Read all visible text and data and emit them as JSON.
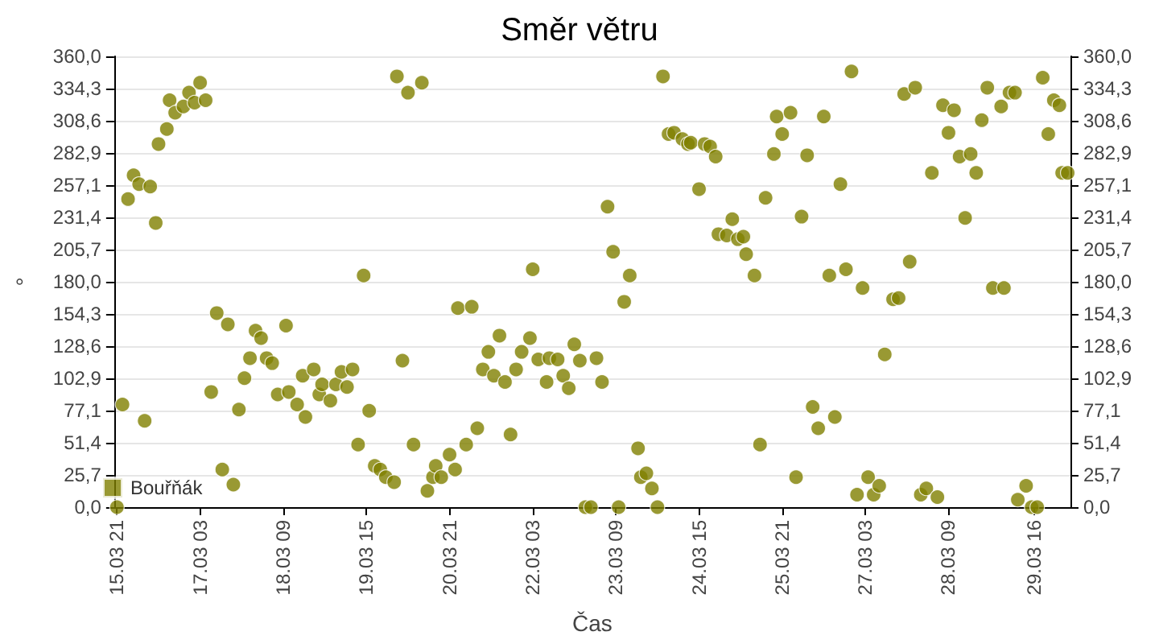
{
  "chart_data": {
    "type": "scatter",
    "title": "Směr větru",
    "xlabel": "Čas",
    "ylabel": "°",
    "xlim": [
      "--03-15T20:00",
      "--03-30T05:00"
    ],
    "xticks": [
      {
        "value": "--03-15T21:00",
        "label": "15.03 21"
      },
      {
        "value": "--03-17T03:00",
        "label": "17.03 03"
      },
      {
        "value": "--03-18T09:00",
        "label": "18.03 09"
      },
      {
        "value": "--03-19T15:00",
        "label": "19.03 15"
      },
      {
        "value": "--03-20T21:00",
        "label": "20.03 21"
      },
      {
        "value": "--03-22T03:00",
        "label": "22.03 03"
      },
      {
        "value": "--03-23T09:00",
        "label": "23.03 09"
      },
      {
        "value": "--03-24T15:00",
        "label": "24.03 15"
      },
      {
        "value": "--03-25T21:00",
        "label": "25.03 21"
      },
      {
        "value": "--03-27T03:00",
        "label": "27.03 03"
      },
      {
        "value": "--03-28T09:00",
        "label": "28.03 09"
      },
      {
        "value": "--03-29T16:00",
        "label": "29.03 16"
      }
    ],
    "ylim": [
      0,
      360
    ],
    "yticks": [
      {
        "value": 0,
        "label": "0,0"
      },
      {
        "value": 25.7,
        "label": "25,7"
      },
      {
        "value": 51.4,
        "label": "51,4"
      },
      {
        "value": 77.1,
        "label": "77,1"
      },
      {
        "value": 102.9,
        "label": "102,9"
      },
      {
        "value": 128.6,
        "label": "128,6"
      },
      {
        "value": 154.3,
        "label": "154,3"
      },
      {
        "value": 180,
        "label": "180,0"
      },
      {
        "value": 205.7,
        "label": "205,7"
      },
      {
        "value": 231.4,
        "label": "231,4"
      },
      {
        "value": 257.1,
        "label": "257,1"
      },
      {
        "value": 282.9,
        "label": "282,9"
      },
      {
        "value": 308.6,
        "label": "308,6"
      },
      {
        "value": 334.3,
        "label": "334,3"
      },
      {
        "value": 360,
        "label": "360,0"
      }
    ],
    "y2lim": [
      0,
      360
    ],
    "y2ticks": [
      {
        "value": 0,
        "label": "0,0"
      },
      {
        "value": 25.7,
        "label": "25,7"
      },
      {
        "value": 51.4,
        "label": "51,4"
      },
      {
        "value": 77.1,
        "label": "77,1"
      },
      {
        "value": 102.9,
        "label": "102,9"
      },
      {
        "value": 128.6,
        "label": "128,6"
      },
      {
        "value": 154.3,
        "label": "154,3"
      },
      {
        "value": 180,
        "label": "180,0"
      },
      {
        "value": 205.7,
        "label": "205,7"
      },
      {
        "value": 231.4,
        "label": "231,4"
      },
      {
        "value": 257.1,
        "label": "257,1"
      },
      {
        "value": 282.9,
        "label": "282,9"
      },
      {
        "value": 308.6,
        "label": "308,6"
      },
      {
        "value": 334.3,
        "label": "334,3"
      },
      {
        "value": 360,
        "label": "360,0"
      }
    ],
    "grid": "y",
    "legend": "bottom left",
    "marker": "circle",
    "series": [
      {
        "name": "Bouřňák",
        "color": "#808000",
        "x": [
          "--03-15T21:00",
          "--03-15T23:00",
          "--03-16T01:00",
          "--03-16T03:00",
          "--03-16T05:00",
          "--03-16T07:00",
          "--03-16T09:00",
          "--03-16T11:00",
          "--03-16T12:00",
          "--03-16T15:00",
          "--03-16T16:00",
          "--03-16T18:00",
          "--03-16T21:00",
          "--03-16T23:00",
          "--03-17T01:00",
          "--03-17T03:00",
          "--03-17T05:00",
          "--03-17T07:00",
          "--03-17T09:00",
          "--03-17T11:00",
          "--03-17T13:00",
          "--03-17T15:00",
          "--03-17T17:00",
          "--03-17T19:00",
          "--03-17T21:00",
          "--03-17T23:00",
          "--03-18T01:00",
          "--03-18T03:00",
          "--03-18T05:00",
          "--03-18T07:00",
          "--03-18T10:00",
          "--03-18T11:00",
          "--03-18T14:00",
          "--03-18T16:00",
          "--03-18T17:00",
          "--03-18T20:00",
          "--03-18T22:00",
          "--03-18T23:00",
          "--03-19T02:00",
          "--03-19T04:00",
          "--03-19T06:00",
          "--03-19T08:00",
          "--03-19T10:00",
          "--03-19T12:00",
          "--03-19T14:00",
          "--03-19T16:00",
          "--03-19T18:00",
          "--03-19T20:00",
          "--03-19T22:00",
          "--03-20T01:00",
          "--03-20T02:00",
          "--03-20T04:00",
          "--03-20T06:00",
          "--03-20T08:00",
          "--03-20T11:00",
          "--03-20T13:00",
          "--03-20T15:00",
          "--03-20T16:00",
          "--03-20T18:00",
          "--03-20T21:00",
          "--03-20T23:00",
          "--03-21T00:00",
          "--03-21T03:00",
          "--03-21T05:00",
          "--03-21T07:00",
          "--03-21T09:00",
          "--03-21T11:00",
          "--03-21T13:00",
          "--03-21T15:00",
          "--03-21T17:00",
          "--03-21T19:00",
          "--03-21T21:00",
          "--03-21T23:00",
          "--03-22T02:00",
          "--03-22T03:00",
          "--03-22T05:00",
          "--03-22T08:00",
          "--03-22T09:00",
          "--03-22T12:00",
          "--03-22T14:00",
          "--03-22T16:00",
          "--03-22T18:00",
          "--03-22T20:00",
          "--03-22T22:00",
          "--03-23T00:00",
          "--03-23T02:00",
          "--03-23T04:00",
          "--03-23T06:00",
          "--03-23T08:00",
          "--03-23T10:00",
          "--03-23T12:00",
          "--03-23T14:00",
          "--03-23T17:00",
          "--03-23T18:00",
          "--03-23T20:00",
          "--03-23T22:00",
          "--03-24T00:00",
          "--03-24T02:00",
          "--03-24T04:00",
          "--03-24T06:00",
          "--03-24T09:00",
          "--03-24T11:00",
          "--03-24T12:00",
          "--03-24T15:00",
          "--03-24T17:00",
          "--03-24T19:00",
          "--03-24T21:00",
          "--03-24T22:00",
          "--03-25T01:00",
          "--03-25T03:00",
          "--03-25T05:00",
          "--03-25T07:00",
          "--03-25T08:00",
          "--03-25T11:00",
          "--03-25T13:00",
          "--03-25T15:00",
          "--03-25T18:00",
          "--03-25T19:00",
          "--03-25T21:00",
          "--03-26T00:00",
          "--03-26T02:00",
          "--03-26T04:00",
          "--03-26T06:00",
          "--03-26T08:00",
          "--03-26T10:00",
          "--03-26T12:00",
          "--03-26T14:00",
          "--03-26T16:00",
          "--03-26T18:00",
          "--03-26T20:00",
          "--03-26T22:00",
          "--03-27T00:00",
          "--03-27T02:00",
          "--03-27T04:00",
          "--03-27T06:00",
          "--03-27T08:00",
          "--03-27T10:00",
          "--03-27T13:00",
          "--03-27T15:00",
          "--03-27T17:00",
          "--03-27T19:00",
          "--03-27T21:00",
          "--03-27T23:00",
          "--03-28T01:00",
          "--03-28T03:00",
          "--03-28T05:00",
          "--03-28T07:00",
          "--03-28T09:00",
          "--03-28T11:00",
          "--03-28T13:00",
          "--03-28T15:00",
          "--03-28T17:00",
          "--03-28T19:00",
          "--03-28T21:00",
          "--03-28T23:00",
          "--03-29T01:00",
          "--03-29T04:00",
          "--03-29T05:00",
          "--03-29T07:00",
          "--03-29T09:00",
          "--03-29T10:00",
          "--03-29T13:00",
          "--03-29T15:00",
          "--03-29T17:00",
          "--03-29T19:00",
          "--03-29T21:00",
          "--03-29T23:00",
          "--03-30T01:00",
          "--03-30T02:00",
          "--03-30T04:00"
        ],
        "values": [
          0,
          82,
          246,
          265,
          258,
          69,
          256,
          227,
          290,
          302,
          325,
          315,
          320,
          331,
          323,
          339,
          325,
          92,
          155,
          30,
          146,
          18,
          78,
          103,
          119,
          141,
          135,
          119,
          115,
          90,
          145,
          92,
          82,
          105,
          72,
          110,
          90,
          98,
          85,
          98,
          108,
          96,
          110,
          50,
          185,
          77,
          33,
          30,
          24,
          20,
          344,
          117,
          331,
          50,
          339,
          13,
          24,
          33,
          24,
          42,
          30,
          159,
          50,
          160,
          63,
          110,
          124,
          105,
          137,
          100,
          58,
          110,
          124,
          135,
          190,
          118,
          100,
          119,
          118,
          105,
          95,
          130,
          117,
          0,
          0,
          119,
          100,
          240,
          204,
          0,
          164,
          185,
          47,
          24,
          27,
          15,
          0,
          344,
          298,
          299,
          294,
          290,
          291,
          254,
          290,
          288,
          280,
          218,
          217,
          230,
          214,
          216,
          202,
          185,
          50,
          247,
          282,
          312,
          298,
          315,
          24,
          232,
          281,
          80,
          63,
          312,
          185,
          72,
          258,
          190,
          348,
          10,
          175,
          24,
          10,
          17,
          122,
          166,
          167,
          330,
          196,
          335,
          10,
          15,
          267,
          8,
          321,
          299,
          317,
          280,
          231,
          282,
          267,
          309,
          335,
          175,
          320,
          175,
          331,
          331,
          6,
          17,
          0,
          0,
          343,
          298,
          325,
          321,
          267,
          267
        ]
      }
    ]
  }
}
